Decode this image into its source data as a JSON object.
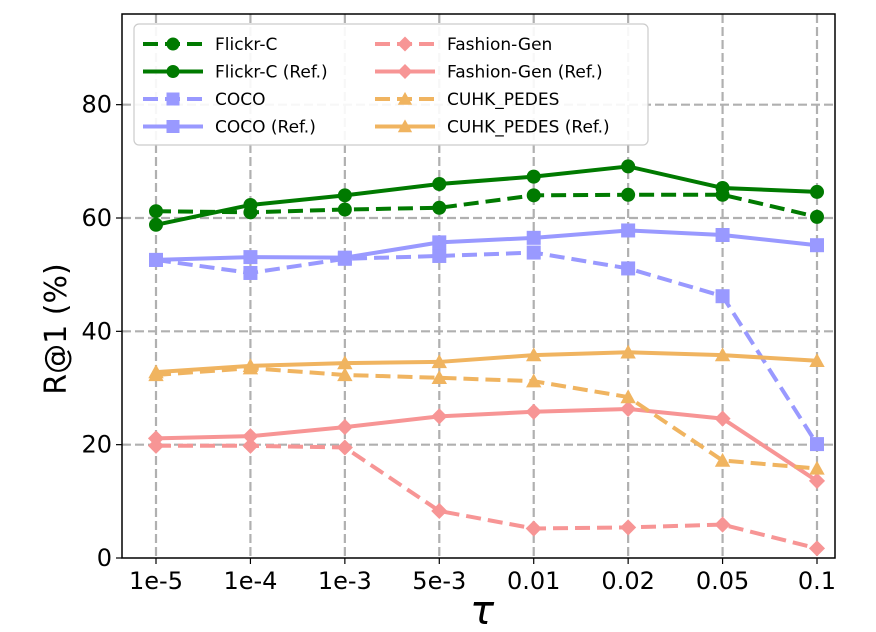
{
  "chart_data": {
    "type": "line",
    "xlabel": "τ",
    "ylabel": "R@1 (%)",
    "categories": [
      "1e-5",
      "1e-4",
      "1e-3",
      "5e-3",
      "0.01",
      "0.02",
      "0.05",
      "0.1"
    ],
    "ylim": [
      0,
      96
    ],
    "yticks": [
      0,
      20,
      40,
      60,
      80
    ],
    "grid": true,
    "legend_position": "top-left",
    "series": [
      {
        "name": "Flickr-C",
        "color": "#007a00",
        "style": "dashed",
        "marker": "circle",
        "values": [
          61.2,
          61.0,
          61.5,
          61.8,
          64.0,
          64.1,
          64.1,
          60.2
        ]
      },
      {
        "name": "Flickr-C (Ref.)",
        "color": "#007a00",
        "style": "solid",
        "marker": "circle",
        "values": [
          58.8,
          62.3,
          64.0,
          66.0,
          67.3,
          69.1,
          65.3,
          64.6
        ]
      },
      {
        "name": "COCO",
        "color": "#9999ff",
        "style": "dashed",
        "marker": "square",
        "values": [
          52.6,
          50.3,
          52.8,
          53.3,
          53.9,
          51.1,
          46.2,
          20.1
        ]
      },
      {
        "name": "COCO (Ref.)",
        "color": "#9999ff",
        "style": "solid",
        "marker": "square",
        "values": [
          52.6,
          53.1,
          53.0,
          55.7,
          56.5,
          57.8,
          57.0,
          55.2
        ]
      },
      {
        "name": "Fashion-Gen",
        "color": "#f79595",
        "style": "dashed",
        "marker": "diamond",
        "values": [
          19.8,
          19.8,
          19.5,
          8.3,
          5.2,
          5.4,
          5.9,
          1.7
        ]
      },
      {
        "name": "Fashion-Gen (Ref.)",
        "color": "#f79595",
        "style": "solid",
        "marker": "diamond",
        "values": [
          21.1,
          21.5,
          23.1,
          25.0,
          25.8,
          26.3,
          24.6,
          13.6
        ]
      },
      {
        "name": "CUHK_PEDES",
        "color": "#f0b460",
        "style": "dashed",
        "marker": "triangle",
        "values": [
          32.3,
          33.5,
          32.3,
          31.8,
          31.2,
          28.4,
          17.2,
          15.8
        ]
      },
      {
        "name": "CUHK_PEDES (Ref.)",
        "color": "#f0b460",
        "style": "solid",
        "marker": "triangle",
        "values": [
          32.8,
          33.9,
          34.4,
          34.6,
          35.8,
          36.3,
          35.8,
          34.8
        ]
      }
    ]
  }
}
